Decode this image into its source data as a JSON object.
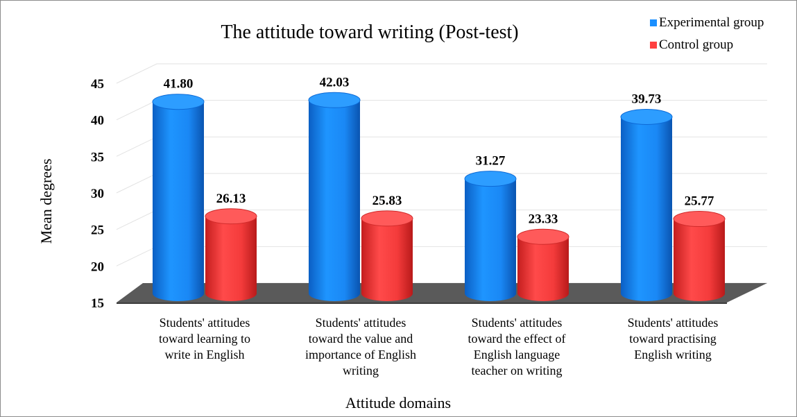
{
  "chart_data": {
    "type": "bar",
    "title": "The attitude toward writing (Post-test)",
    "xlabel": "Attitude domains",
    "ylabel": "Mean degrees",
    "ylim": [
      15,
      45
    ],
    "yticks": [
      15,
      20,
      25,
      30,
      35,
      40,
      45
    ],
    "grid": true,
    "legend_position": "top-right",
    "categories": [
      [
        "Students' attitudes",
        "toward learning to",
        "write in English"
      ],
      [
        "Students' attitudes",
        "toward the value and",
        "importance of  English",
        "writing"
      ],
      [
        "Students' attitudes",
        "toward  the effect of",
        "English language",
        "teacher on writing"
      ],
      [
        "Students' attitudes",
        "toward practising",
        "English writing"
      ]
    ],
    "series": [
      {
        "name": "Experimental group",
        "color": "#1a8fff",
        "values": [
          41.8,
          42.03,
          31.27,
          39.73
        ],
        "labels": [
          "41.80",
          "42.03",
          "31.27",
          "39.73"
        ]
      },
      {
        "name": "Control group",
        "color": "#ff4040",
        "values": [
          26.13,
          25.83,
          23.33,
          25.77
        ],
        "labels": [
          "26.13",
          "25.83",
          "23.33",
          "25.77"
        ]
      }
    ]
  }
}
